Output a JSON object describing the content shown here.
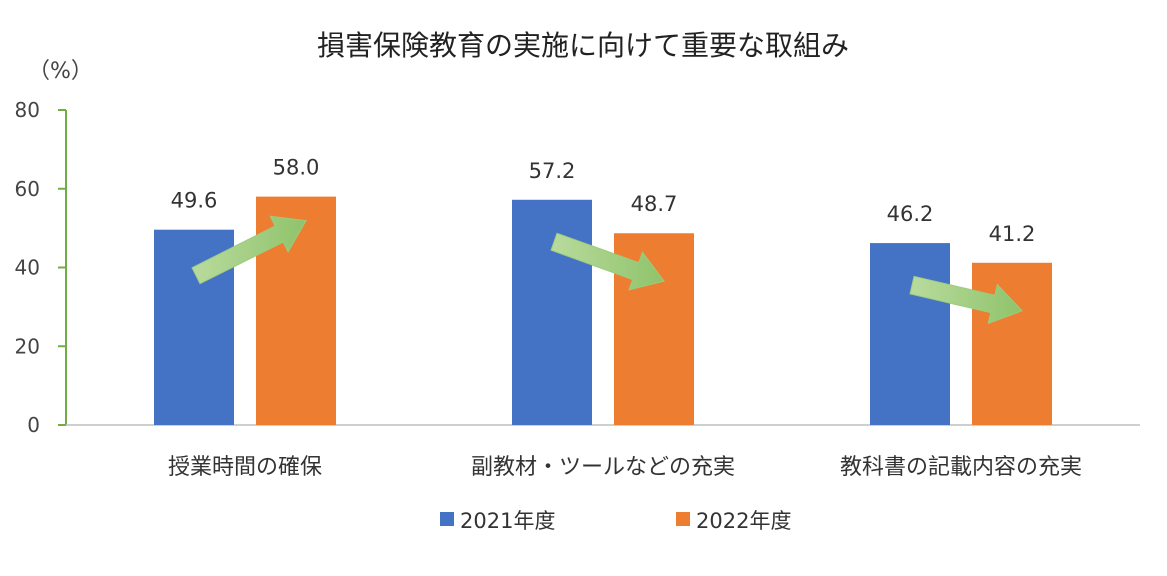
{
  "chart_data": {
    "type": "bar",
    "title": "損害保険教育の実施に向けて重要な取組み",
    "unit_label": "（%）",
    "ylim": [
      0,
      80
    ],
    "yticks": [
      0,
      20,
      40,
      60,
      80
    ],
    "categories": [
      "授業時間の確保",
      "副教材・ツールなどの充実",
      "教科書の記載内容の充実"
    ],
    "series": [
      {
        "name": "2021年度",
        "values": [
          49.6,
          57.2,
          46.2
        ],
        "labels": [
          "49.6",
          "57.2",
          "46.2"
        ],
        "color": "#4472C4"
      },
      {
        "name": "2022年度",
        "values": [
          58.0,
          48.7,
          41.2
        ],
        "labels": [
          "58.0",
          "48.7",
          "41.2"
        ],
        "color": "#ED7D31"
      }
    ],
    "grid": false,
    "legend": "bottom",
    "axis_color": "#70AD47",
    "trend_arrow_color": "#A9D18E",
    "trend_arrows": [
      "up",
      "down",
      "down"
    ]
  }
}
